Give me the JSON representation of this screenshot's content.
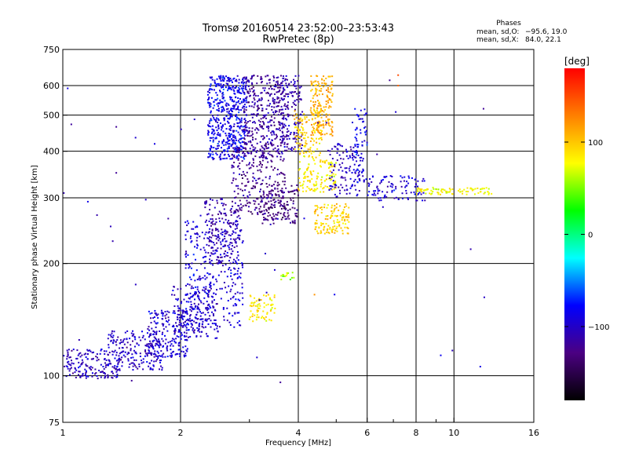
{
  "chart_data": {
    "type": "scatter",
    "title": "Tromsø 20160514 23:52:00–23:53:43",
    "subtitle": "RwPretec (8p)",
    "xlabel": "Frequency [MHz]",
    "ylabel": "Stationary phase Virtual Height [km]",
    "x_scale": "log",
    "y_scale": "log",
    "xlim": [
      1,
      16
    ],
    "ylim": [
      75,
      750
    ],
    "x_ticks": [
      1,
      2,
      4,
      6,
      8,
      10,
      16
    ],
    "x_minor_ticks": [
      3,
      5,
      7,
      9
    ],
    "x_gridlines": [
      2,
      4,
      6,
      8,
      10
    ],
    "y_ticks": [
      75,
      100,
      200,
      300,
      400,
      500,
      600,
      750
    ],
    "y_gridlines": [
      100,
      200,
      300,
      400,
      500,
      600
    ],
    "grid": true,
    "stats": {
      "title": "Phases",
      "o_label": "mean, sd,O:",
      "o_value": "−95.6, 19.0",
      "x_label": "mean, sd,X:",
      "x_value": "84.0, 22.1"
    },
    "colorbar": {
      "label": "[deg]",
      "ticks": [
        {
          "value": 100,
          "label": "100"
        },
        {
          "value": 0,
          "label": "0"
        },
        {
          "value": -100,
          "label": "−100"
        }
      ],
      "range": [
        -180,
        180
      ],
      "colors": [
        "#000000",
        "#4b0082",
        "#0000ff",
        "#00ffff",
        "#00ff00",
        "#ffff00",
        "#ff8000",
        "#ff0000"
      ]
    },
    "clusters": [
      {
        "xr": [
          1.0,
          1.4
        ],
        "yr": [
          98,
          118
        ],
        "phase": -105,
        "n": 170
      },
      {
        "xr": [
          1.3,
          1.8
        ],
        "yr": [
          103,
          132
        ],
        "phase": -100,
        "n": 190
      },
      {
        "xr": [
          1.65,
          2.1
        ],
        "yr": [
          112,
          150
        ],
        "phase": -95,
        "n": 200
      },
      {
        "xr": [
          1.9,
          2.5
        ],
        "yr": [
          125,
          175
        ],
        "phase": -100,
        "n": 170
      },
      {
        "xr": [
          2.05,
          2.9
        ],
        "yr": [
          135,
          260
        ],
        "phase": -95,
        "n": 330
      },
      {
        "xr": [
          2.3,
          2.85
        ],
        "yr": [
          200,
          300
        ],
        "phase": -110,
        "n": 170
      },
      {
        "xr": [
          2.35,
          2.95
        ],
        "yr": [
          380,
          640
        ],
        "phase": -85,
        "n": 520
      },
      {
        "xr": [
          2.9,
          3.7
        ],
        "yr": [
          380,
          640
        ],
        "phase": -115,
        "n": 380
      },
      {
        "xr": [
          2.7,
          3.7
        ],
        "yr": [
          270,
          420
        ],
        "phase": -125,
        "n": 220
      },
      {
        "xr": [
          3.2,
          4.0
        ],
        "yr": [
          255,
          330
        ],
        "phase": -130,
        "n": 150
      },
      {
        "xr": [
          3.6,
          4.1
        ],
        "yr": [
          400,
          640
        ],
        "phase": -110,
        "n": 170
      },
      {
        "xr": [
          3.9,
          4.6
        ],
        "yr": [
          380,
          520
        ],
        "phase": 95,
        "n": 130
      },
      {
        "xr": [
          4.3,
          4.9
        ],
        "yr": [
          440,
          640
        ],
        "phase": 110,
        "n": 170
      },
      {
        "xr": [
          4.0,
          5.0
        ],
        "yr": [
          310,
          380
        ],
        "phase": 85,
        "n": 120
      },
      {
        "xr": [
          4.4,
          5.4
        ],
        "yr": [
          240,
          290
        ],
        "phase": 95,
        "n": 130
      },
      {
        "xr": [
          4.8,
          5.9
        ],
        "yr": [
          300,
          420
        ],
        "phase": -100,
        "n": 120
      },
      {
        "xr": [
          5.5,
          6.0
        ],
        "yr": [
          330,
          520
        ],
        "phase": -85,
        "n": 60
      },
      {
        "xr": [
          6.0,
          8.5
        ],
        "yr": [
          295,
          345
        ],
        "phase": -95,
        "n": 100
      },
      {
        "xr": [
          8.0,
          12.5
        ],
        "yr": [
          306,
          320
        ],
        "phase": 80,
        "n": 90
      },
      {
        "xr": [
          3.0,
          3.5
        ],
        "yr": [
          140,
          165
        ],
        "phase": 85,
        "n": 70
      },
      {
        "xr": [
          3.6,
          3.9
        ],
        "yr": [
          180,
          190
        ],
        "phase": 60,
        "n": 15
      },
      {
        "xr": [
          1.0,
          12.0
        ],
        "yr": [
          100,
          600
        ],
        "phase": -100,
        "n": 50
      }
    ],
    "outliers": [
      {
        "x": 1.37,
        "y": 465,
        "phase": -120
      },
      {
        "x": 1.37,
        "y": 350,
        "phase": -120
      },
      {
        "x": 1.5,
        "y": 97,
        "phase": -120
      },
      {
        "x": 3.6,
        "y": 96,
        "phase": -120
      },
      {
        "x": 7.2,
        "y": 640,
        "phase": 150
      },
      {
        "x": 7.2,
        "y": 600,
        "phase": 140
      },
      {
        "x": 11.9,
        "y": 520,
        "phase": -120
      },
      {
        "x": 6.85,
        "y": 620,
        "phase": -120
      },
      {
        "x": 4.4,
        "y": 165,
        "phase": 120
      }
    ]
  }
}
